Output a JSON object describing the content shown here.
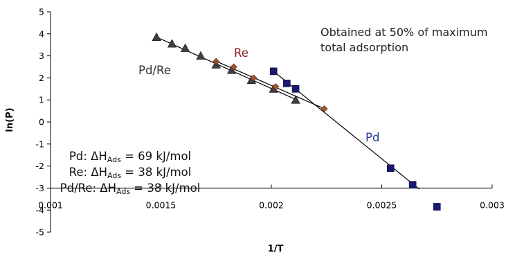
{
  "chart_data": {
    "type": "scatter",
    "xlabel": "1/T",
    "ylabel": "ln(P)",
    "xlim": [
      0.001,
      0.003
    ],
    "ylim": [
      -5,
      5
    ],
    "x_ticks": [
      "0.001",
      "0.0015",
      "0.002",
      "0.0025",
      "0.003"
    ],
    "y_ticks": [
      "5",
      "4",
      "3",
      "2",
      "1",
      "0",
      "-1",
      "-2",
      "-3",
      "-4",
      "-5"
    ],
    "grid": false,
    "series": [
      {
        "name": "Pd/Re",
        "marker": "triangle",
        "color": "#404040",
        "x": [
          0.00148,
          0.00155,
          0.00161,
          0.00168,
          0.00175,
          0.00182,
          0.00191,
          0.00201,
          0.00211
        ],
        "y": [
          3.85,
          3.55,
          3.35,
          3.0,
          2.6,
          2.35,
          1.9,
          1.5,
          1.0
        ],
        "fit": {
          "x": [
            0.00148,
            0.00212
          ],
          "y": [
            3.85,
            0.98
          ]
        }
      },
      {
        "name": "Re",
        "marker": "diamond",
        "color": "#a0522d",
        "x": [
          0.00175,
          0.00183,
          0.00192,
          0.00202,
          0.00224
        ],
        "y": [
          2.75,
          2.5,
          2.0,
          1.6,
          0.6
        ],
        "fit": {
          "x": [
            0.00174,
            0.00224
          ],
          "y": [
            2.8,
            0.6
          ]
        }
      },
      {
        "name": "Pd",
        "marker": "square",
        "color": "#191970",
        "x": [
          0.00201,
          0.00207,
          0.00211,
          0.00254,
          0.00264,
          0.00275
        ],
        "y": [
          2.3,
          1.75,
          1.5,
          -2.1,
          -2.85,
          -3.85
        ],
        "fit": {
          "x": [
            0.00201,
            0.00267
          ],
          "y": [
            2.3,
            -3.05
          ]
        }
      }
    ],
    "series_labels": [
      {
        "text": "Pd/Re",
        "color": "#333333"
      },
      {
        "text": "Re",
        "color": "#8b1a1a"
      },
      {
        "text": "Pd",
        "color": "#1f3f9c"
      }
    ],
    "annotation": {
      "lines": [
        "Obtained at 50% of maximum",
        "total adsorption"
      ]
    },
    "enthalpies": [
      {
        "prefix": "Pd: ΔH",
        "sub": "Ads",
        "suffix": " = 69 kJ/mol"
      },
      {
        "prefix": "Re: ΔH",
        "sub": "Ads",
        "suffix": " = 38 kJ/mol"
      },
      {
        "prefix": "Pd/Re: ΔH",
        "sub": "Ads",
        "suffix": " = 38 kJ/mol"
      }
    ]
  }
}
